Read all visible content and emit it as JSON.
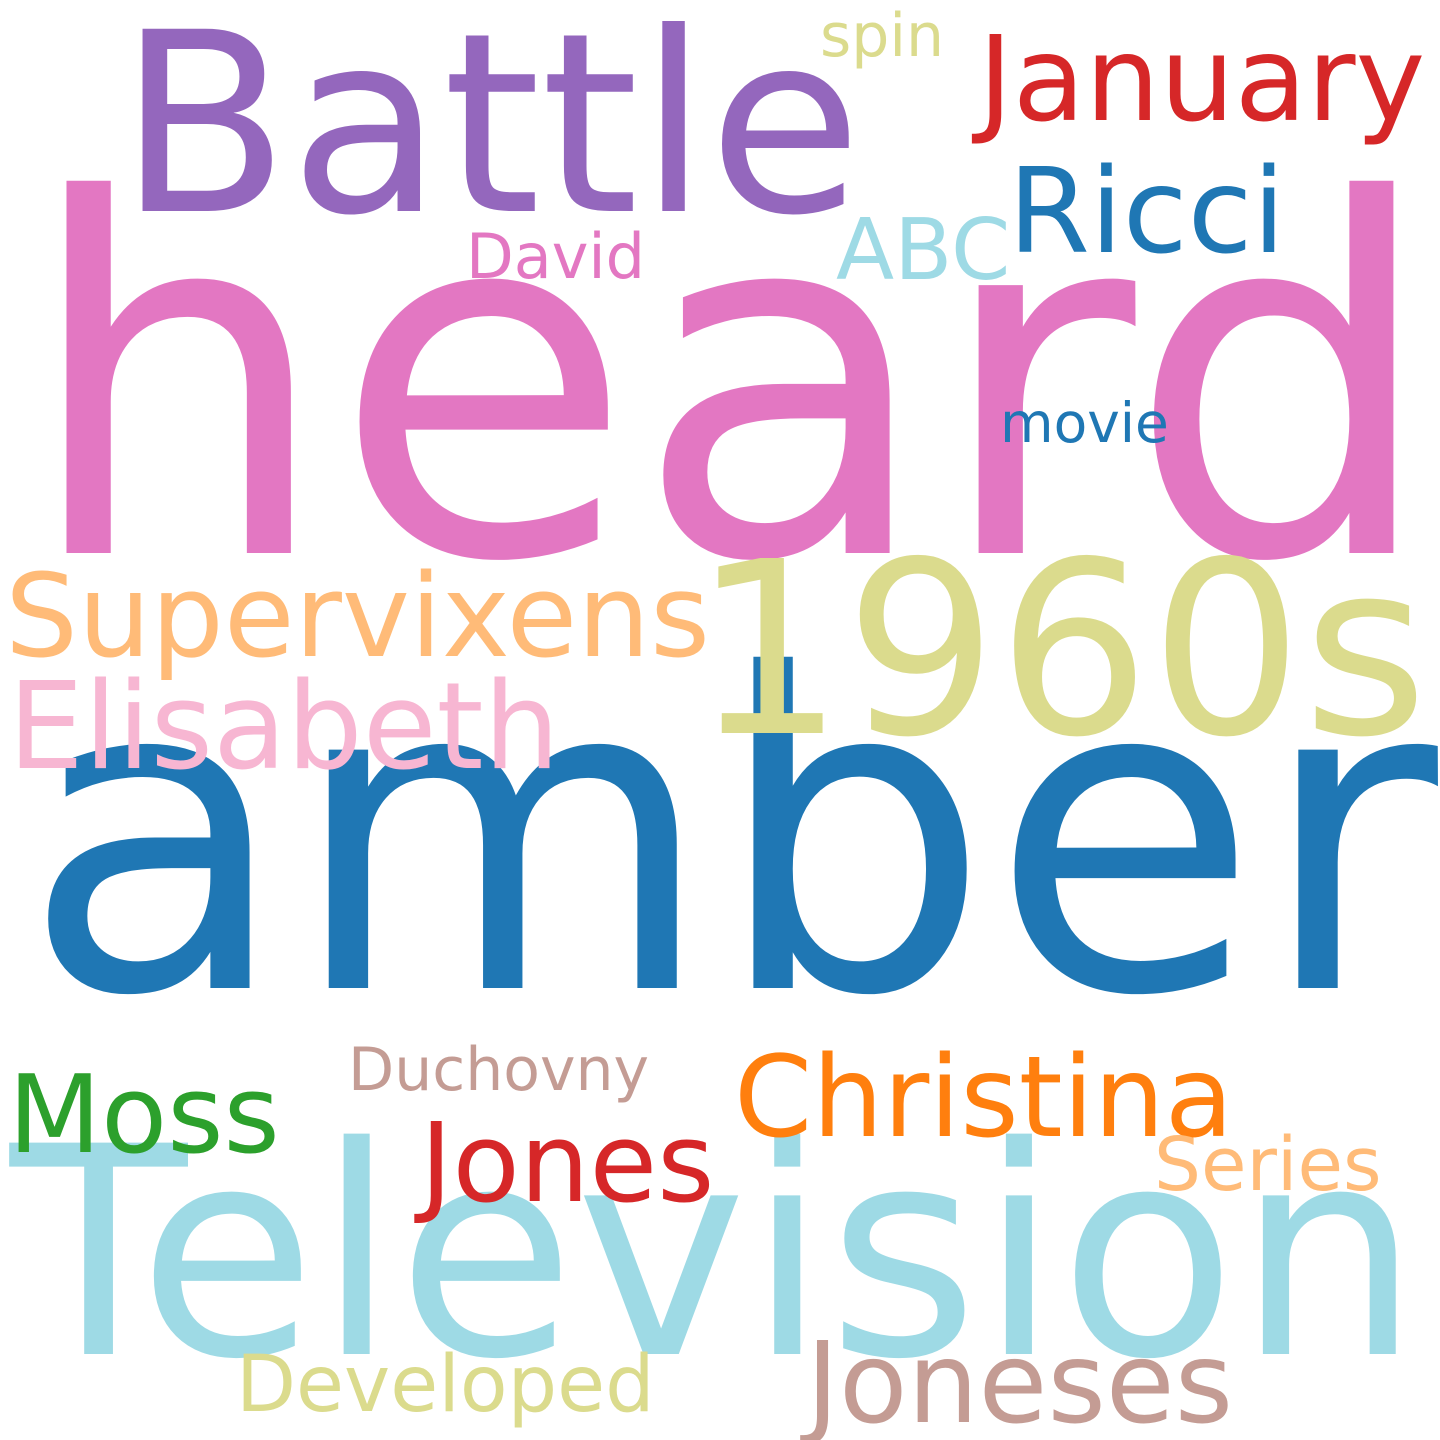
{
  "words": [
    {
      "text": "heard",
      "color": "#e377c2"
    },
    {
      "text": "amber",
      "color": "#1f77b4"
    },
    {
      "text": "Television",
      "color": "#9edae5"
    },
    {
      "text": "Battle",
      "color": "#9467bd"
    },
    {
      "text": "1960s",
      "color": "#dbdb8d"
    },
    {
      "text": "January",
      "color": "#d62728"
    },
    {
      "text": "Ricci",
      "color": "#1f77b4"
    },
    {
      "text": "ABC",
      "color": "#9edae5"
    },
    {
      "text": "David",
      "color": "#e377c2"
    },
    {
      "text": "spin",
      "color": "#dbdb8d"
    },
    {
      "text": "movie",
      "color": "#1f77b4"
    },
    {
      "text": "Supervixens",
      "color": "#ffbb78"
    },
    {
      "text": "Elisabeth",
      "color": "#f7b6d2"
    },
    {
      "text": "Christina",
      "color": "#ff7f0e"
    },
    {
      "text": "Duchovny",
      "color": "#c49c94"
    },
    {
      "text": "Moss",
      "color": "#2ca02c"
    },
    {
      "text": "Jones",
      "color": "#d62728"
    },
    {
      "text": "Series",
      "color": "#ffbb78"
    },
    {
      "text": "Developed",
      "color": "#dbdb8d"
    },
    {
      "text": "Joneses",
      "color": "#c49c94"
    }
  ]
}
